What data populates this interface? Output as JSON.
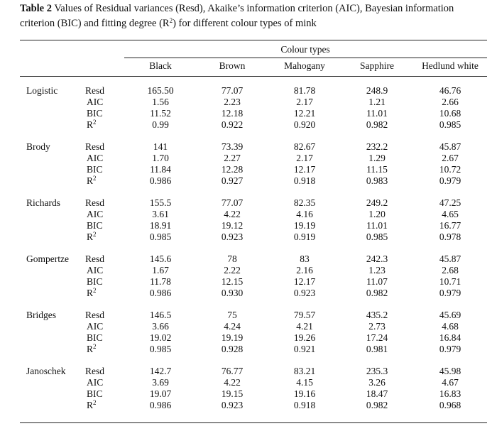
{
  "caption": {
    "label": "Table 2",
    "line1": "Values of Residual variances (Resd), Akaike’s information criterion (AIC), Bayesian information",
    "line2_pre": "criterion (BIC) and fitting degree (R",
    "line2_sup": "2",
    "line2_post": ") for different colour types of mink"
  },
  "table": {
    "group_header": "Colour types",
    "columns": [
      "Black",
      "Brown",
      "Mahogany",
      "Sapphire",
      "Hedlund white"
    ],
    "metrics": [
      "Resd",
      "AIC",
      "BIC",
      "R"
    ],
    "metric_sup": [
      "",
      "",
      "",
      "2"
    ],
    "models": [
      {
        "name": "Logistic",
        "rows": [
          [
            "165.50",
            "77.07",
            "81.78",
            "248.9",
            "46.76"
          ],
          [
            "1.56",
            "2.23",
            "2.17",
            "1.21",
            "2.66"
          ],
          [
            "11.52",
            "12.18",
            "12.21",
            "11.01",
            "10.68"
          ],
          [
            "0.99",
            "0.922",
            "0.920",
            "0.982",
            "0.985"
          ]
        ]
      },
      {
        "name": "Brody",
        "rows": [
          [
            "141",
            "73.39",
            "82.67",
            "232.2",
            "45.87"
          ],
          [
            "1.70",
            "2.27",
            "2.17",
            "1.29",
            "2.67"
          ],
          [
            "11.84",
            "12.28",
            "12.17",
            "11.15",
            "10.72"
          ],
          [
            "0.986",
            "0.927",
            "0.918",
            "0.983",
            "0.979"
          ]
        ]
      },
      {
        "name": "Richards",
        "rows": [
          [
            "155.5",
            "77.07",
            "82.35",
            "249.2",
            "47.25"
          ],
          [
            "3.61",
            "4.22",
            "4.16",
            "1.20",
            "4.65"
          ],
          [
            "18.91",
            "19.12",
            "19.19",
            "11.01",
            "16.77"
          ],
          [
            "0.985",
            "0.923",
            "0.919",
            "0.985",
            "0.978"
          ]
        ]
      },
      {
        "name": "Gompertze",
        "rows": [
          [
            "145.6",
            "78",
            "83",
            "242.3",
            "45.87"
          ],
          [
            "1.67",
            "2.22",
            "2.16",
            "1.23",
            "2.68"
          ],
          [
            "11.78",
            "12.15",
            "12.17",
            "11.07",
            "10.71"
          ],
          [
            "0.986",
            "0.930",
            "0.923",
            "0.982",
            "0.979"
          ]
        ]
      },
      {
        "name": "Bridges",
        "rows": [
          [
            "146.5",
            "75",
            "79.57",
            "435.2",
            "45.69"
          ],
          [
            "3.66",
            "4.24",
            "4.21",
            "2.73",
            "4.68"
          ],
          [
            "19.02",
            "19.19",
            "19.26",
            "17.24",
            "16.84"
          ],
          [
            "0.985",
            "0.928",
            "0.921",
            "0.981",
            "0.979"
          ]
        ]
      },
      {
        "name": "Janoschek",
        "rows": [
          [
            "142.7",
            "76.77",
            "83.21",
            "235.3",
            "45.98"
          ],
          [
            "3.69",
            "4.22",
            "4.15",
            "3.26",
            "4.67"
          ],
          [
            "19.07",
            "19.15",
            "19.16",
            "18.47",
            "16.83"
          ],
          [
            "0.986",
            "0.923",
            "0.918",
            "0.982",
            "0.968"
          ]
        ]
      }
    ]
  }
}
